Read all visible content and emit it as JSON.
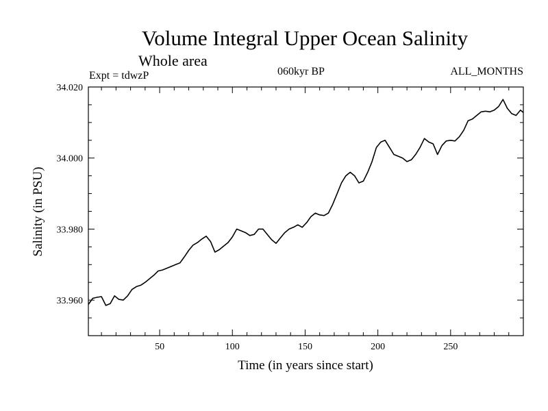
{
  "header": {
    "title": "Volume Integral Upper Ocean Salinity",
    "subtitle": "Whole area",
    "experiment": "Expt = tdwzP",
    "period": "060kyr BP",
    "months": "ALL_MONTHS"
  },
  "colors": {
    "line": "#000000",
    "background": "#ffffff"
  },
  "chart_data": {
    "type": "line",
    "title": "Volume Integral Upper Ocean Salinity",
    "subtitle": "Whole area",
    "xlabel": "Time (in years since start)",
    "ylabel": "Salinity (in PSU)",
    "xlim": [
      1,
      300
    ],
    "ylim": [
      33.95,
      34.02
    ],
    "xticks": [
      50,
      100,
      150,
      200,
      250
    ],
    "xtick_labels": [
      "50",
      "100",
      "150",
      "200",
      "250"
    ],
    "yticks": [
      33.96,
      33.98,
      34.0,
      34.02
    ],
    "ytick_labels": [
      "33.960",
      "33.980",
      "34.000",
      "34.020"
    ],
    "grid": false,
    "series": [
      {
        "x": [
          1,
          4,
          7,
          10,
          13,
          16,
          19,
          22,
          25,
          28,
          31,
          34,
          37,
          40,
          43,
          46,
          49,
          52,
          55,
          58,
          61,
          64,
          67,
          70,
          73,
          76,
          79,
          82,
          85,
          88,
          91,
          94,
          97,
          100,
          103,
          106,
          109,
          112,
          115,
          118,
          121,
          124,
          127,
          130,
          133,
          136,
          139,
          142,
          145,
          148,
          151,
          154,
          157,
          160,
          163,
          166,
          169,
          172,
          175,
          178,
          181,
          184,
          187,
          190,
          193,
          196,
          199,
          202,
          205,
          208,
          211,
          214,
          217,
          220,
          223,
          226,
          229,
          232,
          235,
          238,
          241,
          244,
          247,
          250,
          253,
          256,
          259,
          262,
          265,
          268,
          271,
          274,
          277,
          280,
          283,
          286,
          289,
          292,
          295,
          298,
          300
        ],
        "values": [
          33.9588,
          33.9605,
          33.9608,
          33.961,
          33.9585,
          33.959,
          33.9612,
          33.9602,
          33.96,
          33.9612,
          33.963,
          33.9638,
          33.9642,
          33.965,
          33.966,
          33.967,
          33.9682,
          33.9685,
          33.969,
          33.9695,
          33.97,
          33.9705,
          33.9722,
          33.974,
          33.9755,
          33.9762,
          33.9772,
          33.978,
          33.9765,
          33.9735,
          33.9742,
          33.9752,
          33.9762,
          33.9778,
          33.98,
          33.9795,
          33.979,
          33.9782,
          33.9785,
          33.98,
          33.98,
          33.9785,
          33.977,
          33.976,
          33.9775,
          33.979,
          33.98,
          33.9805,
          33.9812,
          33.9805,
          33.9818,
          33.9835,
          33.9845,
          33.984,
          33.9838,
          33.9845,
          33.987,
          33.99,
          33.993,
          33.995,
          33.996,
          33.995,
          33.993,
          33.9935,
          33.996,
          33.999,
          34.003,
          34.0045,
          34.005,
          34.003,
          34.001,
          34.0005,
          34.0,
          33.999,
          33.9995,
          34.001,
          34.003,
          34.0055,
          34.0045,
          34.004,
          34.001,
          34.0035,
          34.0048,
          34.005,
          34.0048,
          34.006,
          34.0078,
          34.0105,
          34.011,
          34.012,
          34.013,
          34.0132,
          34.013,
          34.0135,
          34.0145,
          34.0165,
          34.014,
          34.0125,
          34.012,
          34.0135,
          34.0128
        ]
      }
    ]
  }
}
